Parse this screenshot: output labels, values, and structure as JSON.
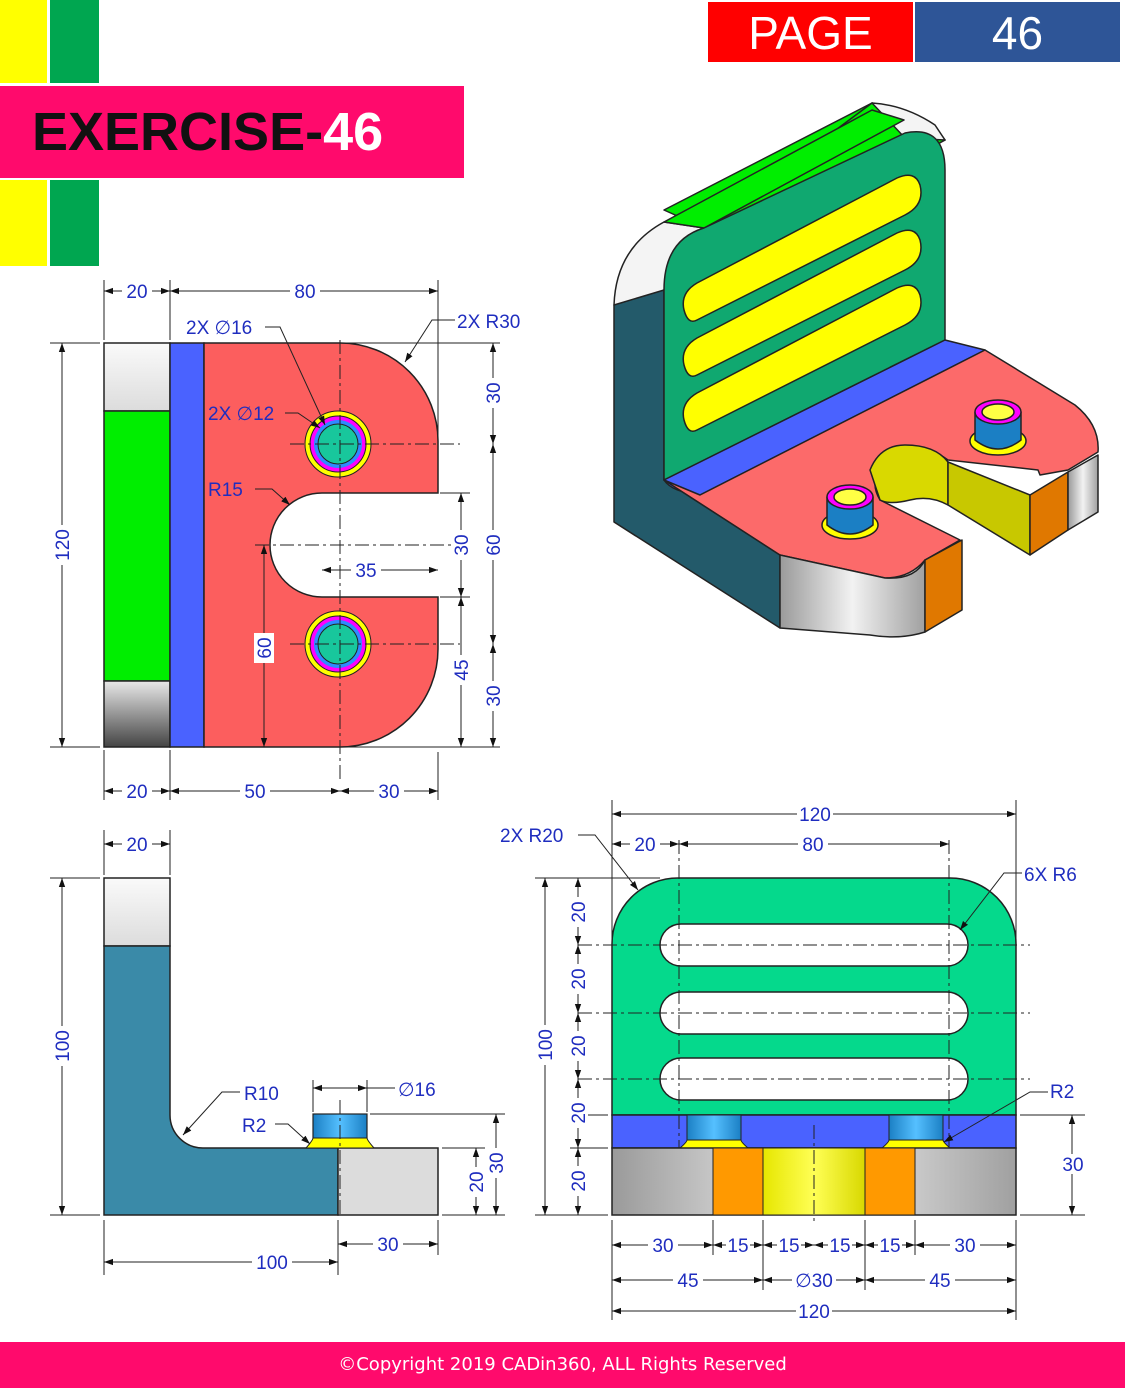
{
  "header": {
    "page_label": "PAGE",
    "page_number": "46",
    "exercise_title": "EXERCISE-",
    "exercise_number": "46"
  },
  "colors": {
    "page_red": "#ff0000",
    "page_blue": "#2e5597",
    "banner_pink": "#ff0a6c",
    "accent_yellow": "#ffff00",
    "accent_green": "#00a650",
    "dimension_blue": "#1f2dbf"
  },
  "top_view": {
    "dims": {
      "d20_top": "20",
      "d80": "80",
      "r30": "2X R30",
      "dia16": "2X ∅16",
      "dia12": "2X ∅12",
      "r15": "R15",
      "d120": "120",
      "d30_a": "30",
      "d30_b": "30",
      "d60_right": "60",
      "d35": "35",
      "d60_left": "60",
      "d45": "45",
      "d30_c": "30",
      "d20_bottom": "20",
      "d50": "50",
      "d30_bottom": "30"
    }
  },
  "side_view": {
    "dims": {
      "d20": "20",
      "d100_v": "100",
      "r10": "R10",
      "r2": "R2",
      "dia16": "∅16",
      "d30_v": "30",
      "d30_h": "30",
      "d100_h": "100"
    }
  },
  "front_view": {
    "dims": {
      "d120_top": "120",
      "r20": "2X R20",
      "d20_top": "20",
      "d80": "80",
      "r6": "6X R6",
      "d20_1": "20",
      "d20_2": "20",
      "d20_3": "20",
      "d20_4": "20",
      "d20_5": "20",
      "d100": "100",
      "r2": "R2",
      "d30_right": "30",
      "b30_left": "30",
      "b15_1": "15",
      "b15_2": "15",
      "b15_3": "15",
      "b15_4": "15",
      "b30_right": "30",
      "b45_left": "45",
      "dia30": "∅30",
      "b45_right": "45",
      "d120_bottom": "120"
    }
  },
  "footer": {
    "copyright": "©Copyright 2019 CADin360, ALL Rights Reserved"
  }
}
